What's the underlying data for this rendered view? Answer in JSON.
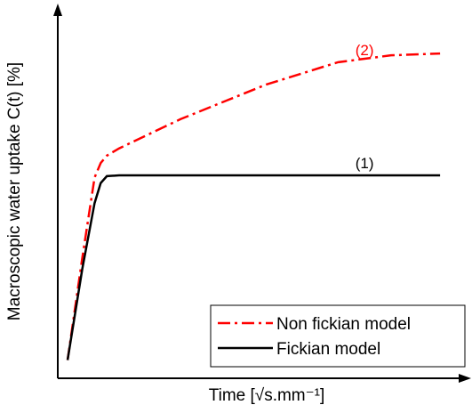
{
  "chart_data": {
    "type": "line",
    "x_label": "Time [√s.mm⁻¹]",
    "y_label": "Macroscopic water uptake C(t) [%]",
    "xlim": [
      0,
      100
    ],
    "ylim": [
      0,
      100
    ],
    "x": [
      2.4,
      6,
      9,
      10.5,
      12,
      15,
      30,
      51,
      68.5,
      81.5,
      93.5
    ],
    "series": [
      {
        "name": "Non fickian model",
        "color": "#ff0000",
        "dash": "dash-dot",
        "label": "(2)",
        "values": [
          5,
          33,
          55,
          59,
          61,
          63,
          71,
          80.5,
          86.6,
          88.5,
          89
        ]
      },
      {
        "name": "Fickian model",
        "color": "#000000",
        "dash": "solid",
        "label": "(1)",
        "values": [
          5,
          30,
          48,
          53.5,
          55.4,
          55.6,
          55.6,
          55.6,
          55.6,
          55.6,
          55.6
        ]
      }
    ],
    "legend": "lower right"
  }
}
